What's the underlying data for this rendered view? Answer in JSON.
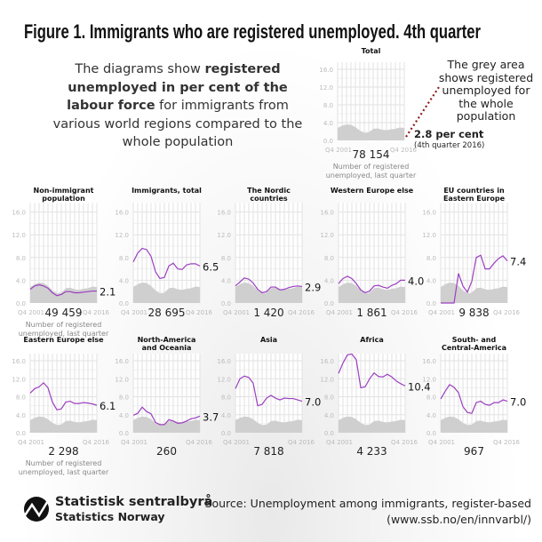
{
  "header": {
    "title": "Figure 1. Immigrants who are registered unemployed. 4th quarter"
  },
  "intro": {
    "part1": "The diagrams show ",
    "bold": "registered unemployed in per cent of the labour force",
    "part2": " for immigrants from various world regions compared to the whole population"
  },
  "annotation": {
    "grey_area": "The grey area shows registered unemployed for the whole population",
    "total_value": "2.8 per cent",
    "total_period": "(4th quarter 2016)"
  },
  "note": "Number of registered unemployed, last quarter",
  "footer": {
    "org_name": "Statistisk sentralbyrå",
    "org_name_en": "Statistics Norway",
    "source_line1": "Source: Unemployment among immigrants, register-based",
    "source_line2": "(www.ssb.no/en/innvarbl/)"
  },
  "colors": {
    "line": "#9b3fc0",
    "grey_area": "#cfcfcf",
    "grid": "#e2e2e2",
    "dotted_line": "#8b1a1a"
  },
  "chart_data": {
    "type": "line",
    "x_start_label": "Q4 2001",
    "x_end_label": "Q4 2016",
    "x": [
      2001,
      2002,
      2003,
      2004,
      2005,
      2006,
      2007,
      2008,
      2009,
      2010,
      2011,
      2012,
      2013,
      2014,
      2015,
      2016
    ],
    "y_ticks": [
      "0.0",
      "4.0",
      "8.0",
      "12.0",
      "16.0"
    ],
    "ylim": [
      0,
      17
    ],
    "whole_population": [
      2.8,
      3.3,
      3.6,
      3.5,
      3.0,
      2.2,
      1.7,
      1.8,
      2.6,
      2.7,
      2.4,
      2.3,
      2.5,
      2.6,
      2.9,
      2.8
    ],
    "total": {
      "title": "Total",
      "count": "78 154",
      "last_label": "2.8"
    },
    "panels": [
      {
        "title": [
          "Non-immigrant",
          "population"
        ],
        "last_label": "2.1",
        "count": "49 459",
        "values": [
          2.4,
          3.0,
          3.2,
          3.0,
          2.6,
          1.8,
          1.3,
          1.5,
          2.0,
          2.0,
          1.8,
          1.8,
          1.9,
          2.0,
          2.1,
          2.1
        ]
      },
      {
        "title": [
          "Immigrants, total"
        ],
        "last_label": "6.5",
        "count": "28 695",
        "values": [
          7.2,
          8.8,
          9.6,
          9.4,
          8.2,
          5.5,
          4.3,
          4.5,
          6.5,
          7.0,
          6.0,
          5.9,
          6.7,
          6.9,
          6.9,
          6.5
        ]
      },
      {
        "title": [
          "The Nordic",
          "countries"
        ],
        "last_label": "2.9",
        "count": "1 420",
        "values": [
          3.0,
          3.7,
          4.4,
          4.2,
          3.5,
          2.4,
          1.8,
          2.0,
          2.8,
          2.8,
          2.3,
          2.4,
          2.7,
          2.9,
          3.0,
          2.9
        ]
      },
      {
        "title": [
          "Western Europe else"
        ],
        "last_label": "4.0",
        "count": "1 861",
        "values": [
          3.4,
          4.3,
          4.7,
          4.3,
          3.4,
          2.3,
          1.8,
          2.1,
          3.0,
          3.1,
          2.8,
          2.6,
          3.1,
          3.4,
          4.0,
          4.0
        ]
      },
      {
        "title": [
          "EU countries in",
          "Eastern Europe"
        ],
        "last_label": "7.4",
        "count": "9 838",
        "values": [
          0,
          0,
          0,
          0,
          5.2,
          3.0,
          1.9,
          3.8,
          8.0,
          8.4,
          6.0,
          6.0,
          7.0,
          7.8,
          8.3,
          7.4
        ]
      },
      {
        "title": [
          "Eastern Europe else"
        ],
        "last_label": "6.1",
        "count": "2 298",
        "values": [
          8.8,
          9.8,
          10.2,
          11.1,
          10.0,
          6.8,
          5.1,
          5.3,
          6.8,
          7.0,
          6.5,
          6.5,
          6.7,
          6.6,
          6.4,
          6.1
        ]
      },
      {
        "title": [
          "North-America",
          "and Oceania"
        ],
        "last_label": "3.7",
        "count": "260",
        "values": [
          3.9,
          4.3,
          5.7,
          4.7,
          4.2,
          2.3,
          1.8,
          1.8,
          2.9,
          2.6,
          2.1,
          2.2,
          2.6,
          3.1,
          3.3,
          3.7
        ]
      },
      {
        "title": [
          "Asia"
        ],
        "last_label": "7.0",
        "count": "7 818",
        "values": [
          9.8,
          12.0,
          12.6,
          12.3,
          11.0,
          6.0,
          6.3,
          7.7,
          8.3,
          7.7,
          7.3,
          7.7,
          7.6,
          7.6,
          7.3,
          7.0
        ]
      },
      {
        "title": [
          "Africa"
        ],
        "last_label": "10.4",
        "count": "4 233",
        "values": [
          13.2,
          15.5,
          17.3,
          17.5,
          16.2,
          10.0,
          10.2,
          12.0,
          13.3,
          12.5,
          12.4,
          13.0,
          12.4,
          11.5,
          10.9,
          10.4
        ]
      },
      {
        "title": [
          "South- and",
          "Central-America"
        ],
        "last_label": "7.0",
        "count": "967",
        "values": [
          7.5,
          9.2,
          10.7,
          10.1,
          8.9,
          5.8,
          4.5,
          4.3,
          6.7,
          7.0,
          6.3,
          6.1,
          6.7,
          6.7,
          7.3,
          7.0
        ]
      }
    ]
  }
}
